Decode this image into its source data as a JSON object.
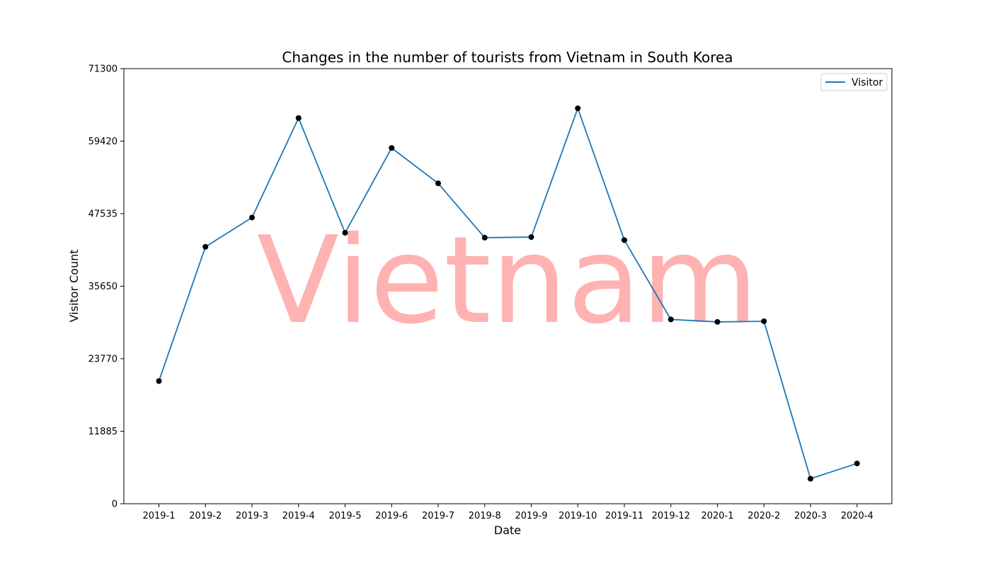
{
  "chart_data": {
    "type": "line",
    "title": "Changes in the number of tourists from Vietnam in South Korea",
    "xlabel": "Date",
    "ylabel": "Visitor Count",
    "categories": [
      "2019-1",
      "2019-2",
      "2019-3",
      "2019-4",
      "2019-5",
      "2019-6",
      "2019-7",
      "2019-8",
      "2019-9",
      "2019-10",
      "2019-11",
      "2019-12",
      "2020-1",
      "2020-2",
      "2020-3",
      "2020-4"
    ],
    "series": [
      {
        "name": "Visitor",
        "values": [
          20100,
          42100,
          46900,
          63200,
          44400,
          58300,
          52500,
          43600,
          43700,
          64800,
          43200,
          30200,
          29800,
          29900,
          4100,
          6600
        ]
      }
    ],
    "ylim": [
      0,
      71300
    ],
    "yticks": [
      0,
      11885,
      23770,
      35650,
      47535,
      59420,
      71300
    ],
    "watermark": "Vietnam",
    "legend_position": "top-right",
    "grid": false,
    "colors": {
      "line": "#1f77b4",
      "marker": "#000000",
      "watermark": "#ff0000"
    }
  }
}
